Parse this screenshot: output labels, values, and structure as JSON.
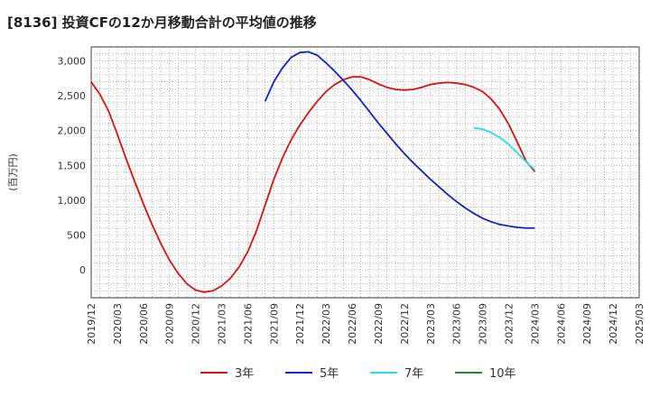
{
  "chart_data": {
    "type": "line",
    "title": "[8136]  投資CFの12か月移動合計の平均値の推移",
    "ylabel": "(百万円)",
    "xlabel": "",
    "ylim": [
      -400,
      3200
    ],
    "yticks": [
      0,
      500,
      1000,
      1500,
      2000,
      2500,
      3000
    ],
    "ytick_labels": [
      "0",
      "500",
      "1,000",
      "1,500",
      "2,000",
      "2,500",
      "3,000"
    ],
    "x_range": [
      "2019-12",
      "2025-03"
    ],
    "xtick_labels": [
      "2019/12",
      "2020/03",
      "2020/06",
      "2020/09",
      "2020/12",
      "2021/03",
      "2021/06",
      "2021/09",
      "2021/12",
      "2022/03",
      "2022/06",
      "2022/09",
      "2022/12",
      "2023/03",
      "2023/06",
      "2023/09",
      "2023/12",
      "2024/03",
      "2024/06",
      "2024/09",
      "2024/12",
      "2025/03"
    ],
    "grid": true,
    "legend_position": "bottom",
    "series": [
      {
        "name": "3年",
        "color": "#dd1111",
        "points": [
          [
            "2019-12",
            2700
          ],
          [
            "2020-01",
            2520
          ],
          [
            "2020-02",
            2280
          ],
          [
            "2020-03",
            1950
          ],
          [
            "2020-04",
            1600
          ],
          [
            "2020-05",
            1270
          ],
          [
            "2020-06",
            950
          ],
          [
            "2020-07",
            650
          ],
          [
            "2020-08",
            380
          ],
          [
            "2020-09",
            140
          ],
          [
            "2020-10",
            -50
          ],
          [
            "2020-11",
            -200
          ],
          [
            "2020-12",
            -290
          ],
          [
            "2021-01",
            -320
          ],
          [
            "2021-02",
            -300
          ],
          [
            "2021-03",
            -230
          ],
          [
            "2021-04",
            -120
          ],
          [
            "2021-05",
            40
          ],
          [
            "2021-06",
            260
          ],
          [
            "2021-07",
            560
          ],
          [
            "2021-08",
            930
          ],
          [
            "2021-09",
            1300
          ],
          [
            "2021-10",
            1610
          ],
          [
            "2021-11",
            1870
          ],
          [
            "2021-12",
            2080
          ],
          [
            "2022-01",
            2260
          ],
          [
            "2022-02",
            2420
          ],
          [
            "2022-03",
            2560
          ],
          [
            "2022-04",
            2660
          ],
          [
            "2022-05",
            2730
          ],
          [
            "2022-06",
            2770
          ],
          [
            "2022-07",
            2770
          ],
          [
            "2022-08",
            2730
          ],
          [
            "2022-09",
            2670
          ],
          [
            "2022-10",
            2620
          ],
          [
            "2022-11",
            2590
          ],
          [
            "2022-12",
            2580
          ],
          [
            "2023-01",
            2590
          ],
          [
            "2023-02",
            2620
          ],
          [
            "2023-03",
            2660
          ],
          [
            "2023-04",
            2680
          ],
          [
            "2023-05",
            2690
          ],
          [
            "2023-06",
            2680
          ],
          [
            "2023-07",
            2660
          ],
          [
            "2023-08",
            2620
          ],
          [
            "2023-09",
            2560
          ],
          [
            "2023-10",
            2450
          ],
          [
            "2023-11",
            2300
          ],
          [
            "2023-12",
            2090
          ],
          [
            "2024-01",
            1830
          ],
          [
            "2024-02",
            1560
          ],
          [
            "2024-03",
            1410
          ]
        ]
      },
      {
        "name": "5年",
        "color": "#1122cc",
        "points": [
          [
            "2021-08",
            2420
          ],
          [
            "2021-09",
            2700
          ],
          [
            "2021-10",
            2900
          ],
          [
            "2021-11",
            3050
          ],
          [
            "2021-12",
            3120
          ],
          [
            "2022-01",
            3130
          ],
          [
            "2022-02",
            3080
          ],
          [
            "2022-03",
            2970
          ],
          [
            "2022-04",
            2850
          ],
          [
            "2022-05",
            2720
          ],
          [
            "2022-06",
            2580
          ],
          [
            "2022-07",
            2430
          ],
          [
            "2022-08",
            2270
          ],
          [
            "2022-09",
            2110
          ],
          [
            "2022-10",
            1960
          ],
          [
            "2022-11",
            1810
          ],
          [
            "2022-12",
            1670
          ],
          [
            "2023-01",
            1540
          ],
          [
            "2023-02",
            1420
          ],
          [
            "2023-03",
            1300
          ],
          [
            "2023-04",
            1190
          ],
          [
            "2023-05",
            1080
          ],
          [
            "2023-06",
            980
          ],
          [
            "2023-07",
            890
          ],
          [
            "2023-08",
            810
          ],
          [
            "2023-09",
            740
          ],
          [
            "2023-10",
            690
          ],
          [
            "2023-11",
            650
          ],
          [
            "2023-12",
            630
          ],
          [
            "2024-01",
            610
          ],
          [
            "2024-02",
            600
          ],
          [
            "2024-03",
            600
          ]
        ]
      },
      {
        "name": "7年",
        "color": "#22e0ee",
        "points": [
          [
            "2023-08",
            2040
          ],
          [
            "2023-09",
            2020
          ],
          [
            "2023-10",
            1970
          ],
          [
            "2023-11",
            1900
          ],
          [
            "2023-12",
            1800
          ],
          [
            "2024-01",
            1680
          ],
          [
            "2024-02",
            1550
          ],
          [
            "2024-03",
            1440
          ]
        ]
      },
      {
        "name": "10年",
        "color": "#2a8a2a",
        "points": []
      }
    ]
  }
}
